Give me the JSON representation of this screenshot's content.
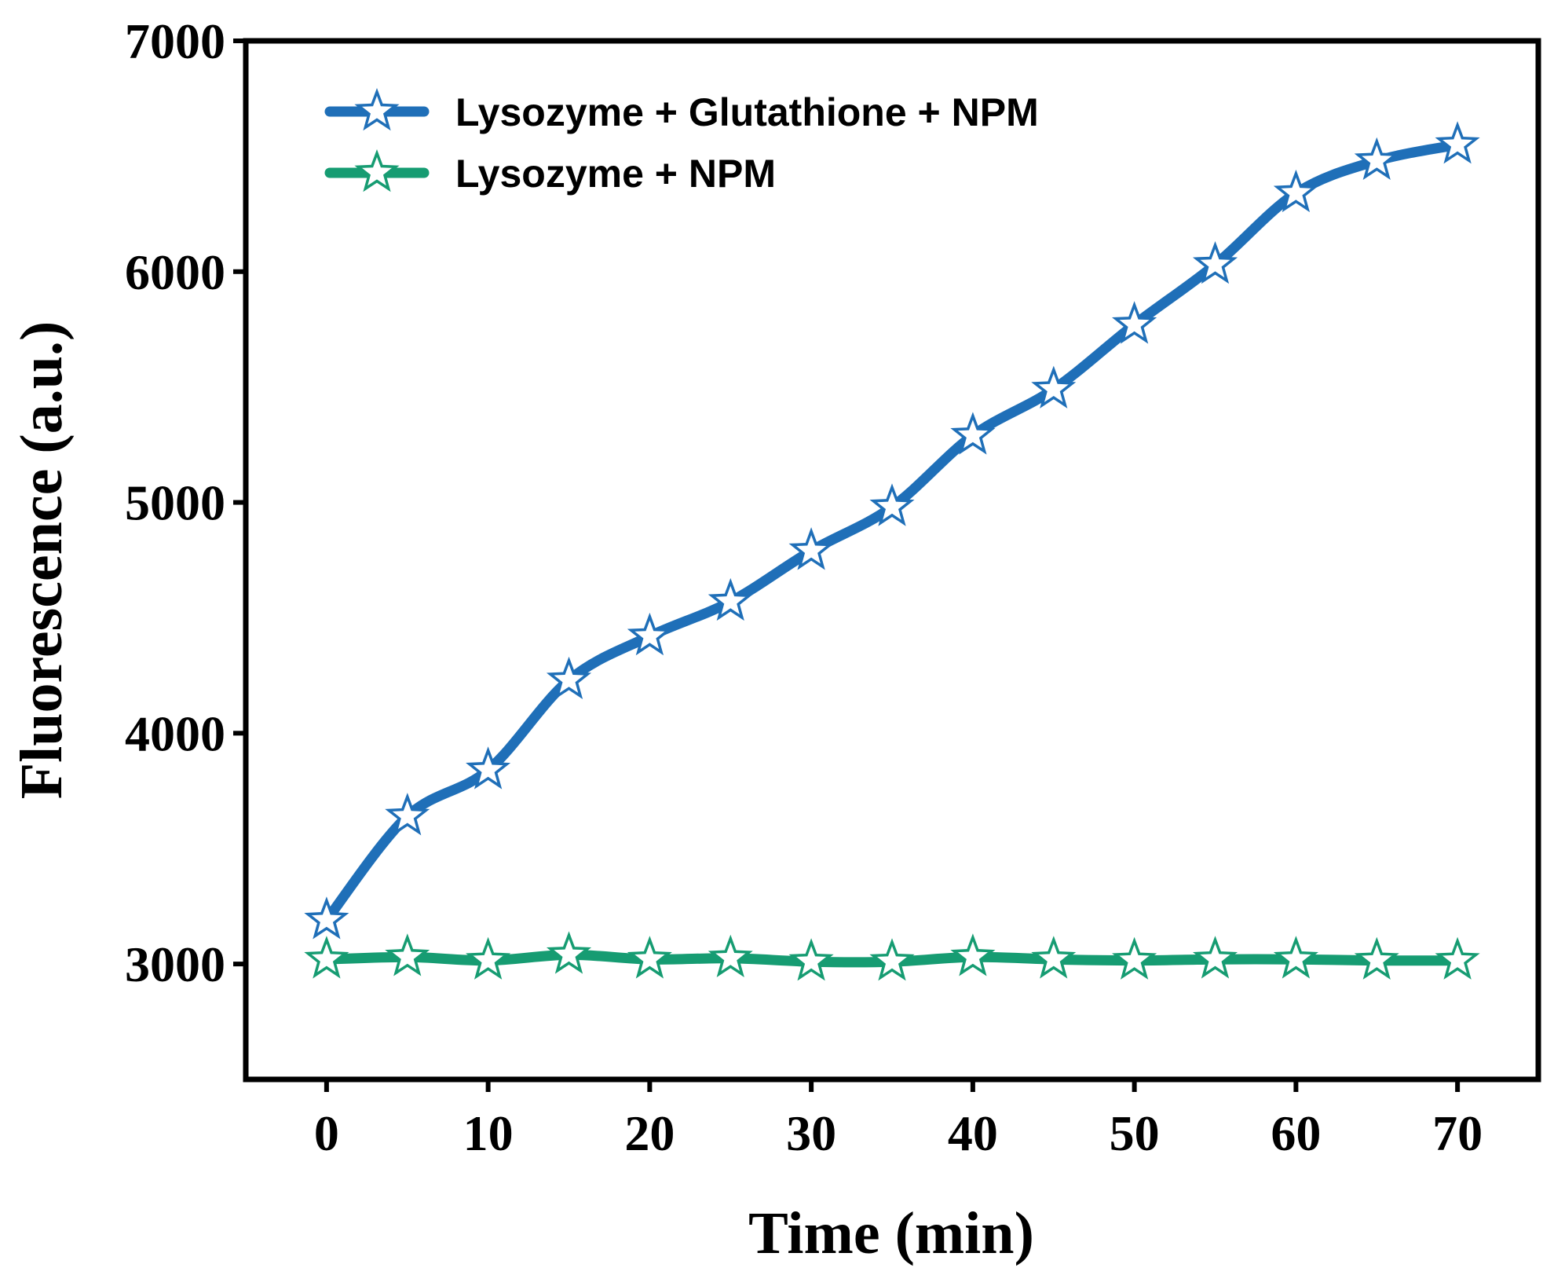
{
  "chart_data": {
    "type": "line",
    "title": "",
    "xlabel": "Time (min)",
    "ylabel": "Fluorescence (a.u.)",
    "xlim": [
      -5,
      75
    ],
    "ylim": [
      2500,
      7000
    ],
    "xticks": [
      0,
      10,
      20,
      30,
      40,
      50,
      60,
      70
    ],
    "yticks": [
      3000,
      4000,
      5000,
      6000,
      7000
    ],
    "legend_position": "top-left",
    "grid": false,
    "x": [
      0,
      5,
      10,
      15,
      20,
      25,
      30,
      35,
      40,
      45,
      50,
      55,
      60,
      65,
      70
    ],
    "series": [
      {
        "name": "Lysozyme + Glutathione + NPM",
        "color": "#1f6fb8",
        "marker": "star-open",
        "values": [
          3190,
          3640,
          3840,
          4230,
          4420,
          4570,
          4790,
          4980,
          5290,
          5490,
          5770,
          6030,
          6340,
          6480,
          6550
        ]
      },
      {
        "name": "Lysozyme + NPM",
        "color": "#169c72",
        "marker": "star-open",
        "values": [
          3020,
          3030,
          3015,
          3040,
          3020,
          3025,
          3010,
          3010,
          3030,
          3020,
          3015,
          3020,
          3020,
          3015,
          3015
        ]
      }
    ]
  }
}
